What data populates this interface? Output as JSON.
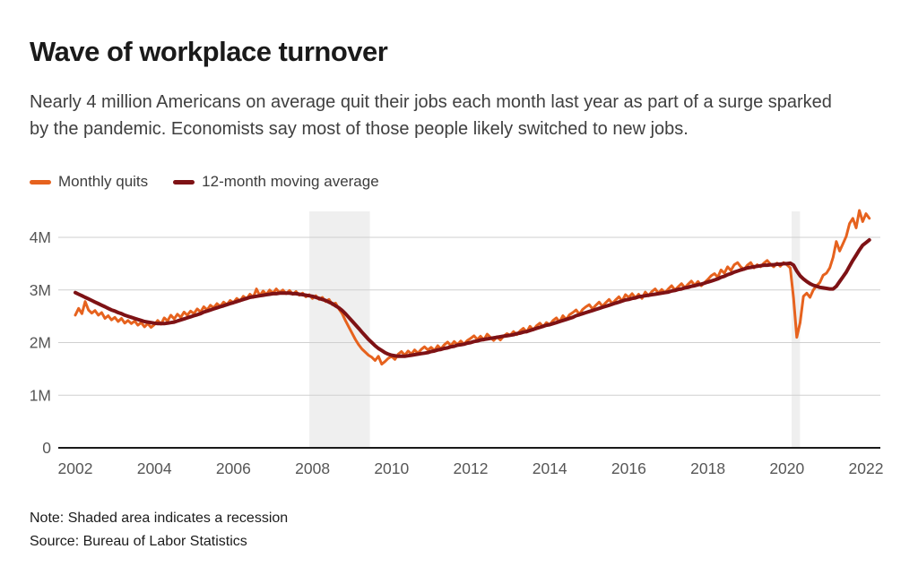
{
  "page": {
    "title": "Wave of workplace turnover",
    "subtitle_line1": "Nearly 4 million Americans on average quit their jobs each month last year as part of a surge sparked",
    "subtitle_line2": "by the pandemic. Economists say most of those people likely switched to new jobs.",
    "note": "Note: Shaded area indicates a recession",
    "source": "Source: Bureau of Labor Statistics"
  },
  "legend": [
    {
      "label": "Monthly quits",
      "color": "#E6621E"
    },
    {
      "label": "12-month moving average",
      "color": "#7E1215"
    }
  ],
  "colors": {
    "grid": "#CFCFCF",
    "axis": "#1A1A1A",
    "tick_label": "#565656",
    "recession_band": "#EFEFEF",
    "monthly_quits": "#E6621E",
    "moving_average": "#7E1215"
  },
  "chart_data": {
    "type": "line",
    "title": "Wave of workplace turnover",
    "xlabel": "",
    "ylabel": "",
    "grid": "horizontal",
    "legend_position": "top-left",
    "x_start_year": 2002,
    "x_step_months": 1,
    "x_tick_years": [
      2002,
      2004,
      2006,
      2008,
      2010,
      2012,
      2014,
      2016,
      2018,
      2020,
      2022
    ],
    "y_ticks": [
      {
        "value": 0,
        "label": "0"
      },
      {
        "value": 1,
        "label": "1M"
      },
      {
        "value": 2,
        "label": "2M"
      },
      {
        "value": 3,
        "label": "3M"
      },
      {
        "value": 4,
        "label": "4M"
      }
    ],
    "ylim": [
      0,
      4.68
    ],
    "xlim": [
      2001.57,
      2022.36
    ],
    "y_unit": "millions of people",
    "recessions": [
      {
        "start": 2007.92,
        "end": 2009.45
      },
      {
        "start": 2020.12,
        "end": 2020.33
      }
    ],
    "series": [
      {
        "name": "Monthly quits",
        "color": "#E6621E",
        "stroke_width": 3,
        "values": [
          2.52,
          2.65,
          2.55,
          2.78,
          2.62,
          2.56,
          2.61,
          2.52,
          2.57,
          2.46,
          2.51,
          2.43,
          2.48,
          2.4,
          2.46,
          2.37,
          2.42,
          2.36,
          2.41,
          2.33,
          2.38,
          2.3,
          2.36,
          2.29,
          2.34,
          2.42,
          2.35,
          2.47,
          2.41,
          2.52,
          2.45,
          2.54,
          2.48,
          2.58,
          2.52,
          2.6,
          2.55,
          2.64,
          2.58,
          2.68,
          2.62,
          2.71,
          2.66,
          2.74,
          2.69,
          2.77,
          2.72,
          2.8,
          2.76,
          2.84,
          2.79,
          2.88,
          2.83,
          2.92,
          2.86,
          3.02,
          2.89,
          2.98,
          2.91,
          3.0,
          2.94,
          3.02,
          2.95,
          3.0,
          2.93,
          2.99,
          2.92,
          2.97,
          2.9,
          2.94,
          2.87,
          2.91,
          2.84,
          2.89,
          2.82,
          2.86,
          2.78,
          2.82,
          2.72,
          2.75,
          2.64,
          2.55,
          2.42,
          2.3,
          2.18,
          2.06,
          1.96,
          1.88,
          1.82,
          1.76,
          1.72,
          1.66,
          1.74,
          1.59,
          1.64,
          1.7,
          1.74,
          1.68,
          1.78,
          1.83,
          1.76,
          1.84,
          1.78,
          1.86,
          1.8,
          1.87,
          1.92,
          1.86,
          1.91,
          1.85,
          1.94,
          1.88,
          1.96,
          2.01,
          1.94,
          2.02,
          1.96,
          2.03,
          1.97,
          2.04,
          2.08,
          2.13,
          2.06,
          2.12,
          2.05,
          2.16,
          2.1,
          2.04,
          2.11,
          2.05,
          2.12,
          2.17,
          2.14,
          2.21,
          2.15,
          2.22,
          2.27,
          2.2,
          2.31,
          2.24,
          2.32,
          2.37,
          2.3,
          2.38,
          2.34,
          2.42,
          2.47,
          2.39,
          2.51,
          2.44,
          2.53,
          2.57,
          2.62,
          2.54,
          2.63,
          2.68,
          2.72,
          2.64,
          2.71,
          2.77,
          2.69,
          2.76,
          2.82,
          2.74,
          2.81,
          2.87,
          2.79,
          2.91,
          2.86,
          2.93,
          2.85,
          2.92,
          2.84,
          2.96,
          2.89,
          2.97,
          3.02,
          2.94,
          3.01,
          2.95,
          3.02,
          3.08,
          3.0,
          3.06,
          3.12,
          3.04,
          3.11,
          3.17,
          3.09,
          3.16,
          3.08,
          3.14,
          3.2,
          3.27,
          3.31,
          3.24,
          3.38,
          3.32,
          3.44,
          3.37,
          3.48,
          3.52,
          3.44,
          3.39,
          3.47,
          3.52,
          3.42,
          3.48,
          3.44,
          3.51,
          3.56,
          3.49,
          3.44,
          3.51,
          3.45,
          3.52,
          3.48,
          3.42,
          2.84,
          2.1,
          2.38,
          2.88,
          2.94,
          2.86,
          3.0,
          3.08,
          3.14,
          3.28,
          3.32,
          3.42,
          3.62,
          3.92,
          3.74,
          3.88,
          4.02,
          4.26,
          4.36,
          4.18,
          4.51,
          4.3,
          4.45,
          4.36
        ]
      },
      {
        "name": "12-month moving average",
        "color": "#7E1215",
        "stroke_width": 4,
        "values": [
          2.95,
          2.92,
          2.89,
          2.86,
          2.83,
          2.8,
          2.77,
          2.74,
          2.71,
          2.68,
          2.65,
          2.62,
          2.6,
          2.57,
          2.55,
          2.52,
          2.5,
          2.48,
          2.46,
          2.44,
          2.42,
          2.4,
          2.39,
          2.38,
          2.37,
          2.36,
          2.36,
          2.36,
          2.37,
          2.38,
          2.39,
          2.41,
          2.43,
          2.45,
          2.47,
          2.49,
          2.51,
          2.53,
          2.55,
          2.58,
          2.6,
          2.62,
          2.64,
          2.66,
          2.68,
          2.7,
          2.72,
          2.74,
          2.76,
          2.78,
          2.8,
          2.82,
          2.84,
          2.86,
          2.87,
          2.88,
          2.89,
          2.9,
          2.91,
          2.92,
          2.93,
          2.93,
          2.94,
          2.94,
          2.94,
          2.94,
          2.93,
          2.93,
          2.92,
          2.91,
          2.9,
          2.89,
          2.88,
          2.86,
          2.84,
          2.82,
          2.8,
          2.77,
          2.74,
          2.7,
          2.66,
          2.61,
          2.55,
          2.48,
          2.41,
          2.34,
          2.27,
          2.2,
          2.13,
          2.06,
          2.0,
          1.94,
          1.89,
          1.85,
          1.81,
          1.78,
          1.76,
          1.75,
          1.74,
          1.74,
          1.74,
          1.75,
          1.76,
          1.77,
          1.78,
          1.79,
          1.8,
          1.81,
          1.83,
          1.84,
          1.86,
          1.87,
          1.89,
          1.9,
          1.92,
          1.93,
          1.95,
          1.96,
          1.97,
          1.99,
          2.0,
          2.02,
          2.03,
          2.05,
          2.06,
          2.07,
          2.08,
          2.09,
          2.1,
          2.11,
          2.12,
          2.13,
          2.14,
          2.15,
          2.17,
          2.18,
          2.2,
          2.21,
          2.23,
          2.25,
          2.27,
          2.29,
          2.31,
          2.33,
          2.34,
          2.36,
          2.38,
          2.4,
          2.42,
          2.44,
          2.46,
          2.48,
          2.51,
          2.53,
          2.55,
          2.57,
          2.59,
          2.61,
          2.63,
          2.65,
          2.67,
          2.69,
          2.71,
          2.73,
          2.75,
          2.77,
          2.79,
          2.81,
          2.82,
          2.84,
          2.85,
          2.87,
          2.88,
          2.89,
          2.9,
          2.91,
          2.92,
          2.93,
          2.94,
          2.95,
          2.96,
          2.98,
          2.99,
          3.01,
          3.02,
          3.04,
          3.05,
          3.07,
          3.08,
          3.1,
          3.11,
          3.13,
          3.15,
          3.17,
          3.19,
          3.21,
          3.24,
          3.26,
          3.29,
          3.31,
          3.34,
          3.36,
          3.38,
          3.4,
          3.42,
          3.43,
          3.44,
          3.45,
          3.46,
          3.47,
          3.47,
          3.48,
          3.48,
          3.49,
          3.49,
          3.5,
          3.5,
          3.51,
          3.47,
          3.36,
          3.27,
          3.21,
          3.16,
          3.12,
          3.09,
          3.07,
          3.05,
          3.04,
          3.03,
          3.02,
          3.02,
          3.07,
          3.16,
          3.25,
          3.34,
          3.45,
          3.56,
          3.66,
          3.76,
          3.85,
          3.9,
          3.95
        ]
      }
    ]
  }
}
